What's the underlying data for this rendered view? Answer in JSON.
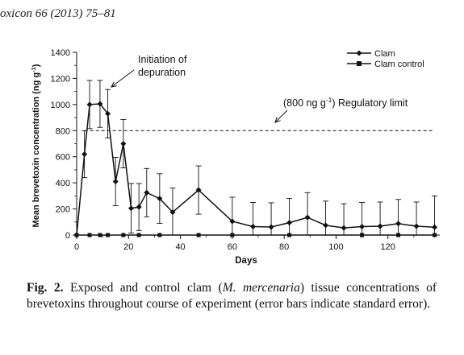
{
  "journal_ref": "oxicon 66 (2013) 75–81",
  "caption": {
    "label": "Fig. 2.",
    "text_before": " Exposed and control clam (",
    "species": "M. mercenaria",
    "text_after": ") tissue concentrations of brevetoxins throughout course of experiment (error bars indicate standard error)."
  },
  "chart_data": {
    "type": "line",
    "xlabel": "Days",
    "ylabel_main": "Mean brevetoxin concentration (ng g",
    "ylabel_sup": "-1",
    "ylabel_end": ")",
    "xlim": [
      0,
      140
    ],
    "ylim": [
      0,
      1400
    ],
    "x_ticks": [
      0,
      20,
      40,
      60,
      80,
      100,
      120
    ],
    "y_ticks": [
      0,
      200,
      400,
      600,
      800,
      1000,
      1200,
      1400
    ],
    "grid": false,
    "legend_position": "top-right",
    "series": [
      {
        "name": "Clam",
        "marker": "diamond",
        "x": [
          0,
          3,
          5,
          9,
          12,
          15,
          18,
          21,
          24,
          27,
          32,
          37,
          47,
          60,
          68,
          75,
          82,
          89,
          96,
          103,
          110,
          117,
          124,
          131,
          138
        ],
        "y": [
          0,
          620,
          1000,
          1005,
          930,
          410,
          700,
          205,
          215,
          325,
          280,
          175,
          345,
          105,
          65,
          62,
          95,
          135,
          75,
          55,
          65,
          68,
          88,
          68,
          60
        ],
        "error": [
          0,
          180,
          185,
          180,
          185,
          185,
          185,
          190,
          180,
          185,
          190,
          185,
          185,
          185,
          185,
          185,
          185,
          190,
          185,
          185,
          185,
          185,
          185,
          185,
          240
        ]
      },
      {
        "name": "Clam control",
        "marker": "square",
        "x": [
          0,
          5,
          9,
          12,
          18,
          24,
          32,
          47,
          60,
          82,
          110,
          124,
          138
        ],
        "y": [
          0,
          0,
          0,
          0,
          0,
          0,
          0,
          0,
          0,
          0,
          0,
          0,
          0
        ]
      }
    ],
    "annotations": [
      {
        "text_line1": "Initiation of",
        "text_line2": "depuration",
        "x": 12,
        "y": 1100
      },
      {
        "text_pre": "(800 ng g",
        "text_sup": "-1",
        "text_post": ") Regulatory limit",
        "y": 800
      }
    ],
    "reference_line": {
      "y": 800,
      "x_range": [
        3,
        138
      ],
      "style": "dashed"
    }
  }
}
